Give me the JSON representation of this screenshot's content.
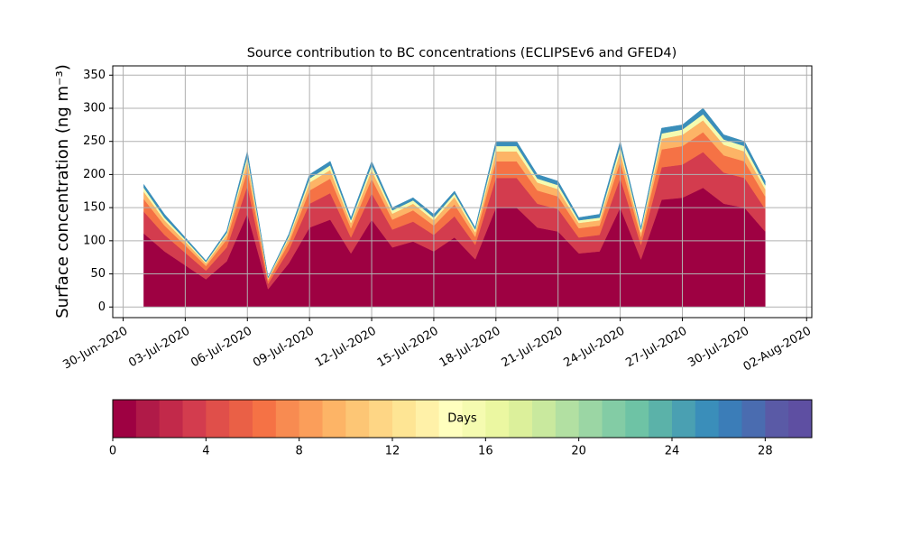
{
  "chart_data": {
    "type": "stackedarea",
    "title": "Source contribution to BC concentrations (ECLIPSEv6 and GFED4)",
    "ylabel": "Surface concentration (ng m⁻³)",
    "x": [
      "2020-07-01",
      "2020-07-02",
      "2020-07-03",
      "2020-07-04",
      "2020-07-05",
      "2020-07-06",
      "2020-07-07",
      "2020-07-08",
      "2020-07-09",
      "2020-07-10",
      "2020-07-11",
      "2020-07-12",
      "2020-07-13",
      "2020-07-14",
      "2020-07-15",
      "2020-07-16",
      "2020-07-17",
      "2020-07-18",
      "2020-07-19",
      "2020-07-20",
      "2020-07-21",
      "2020-07-22",
      "2020-07-23",
      "2020-07-24",
      "2020-07-25",
      "2020-07-26",
      "2020-07-27",
      "2020-07-28",
      "2020-07-29",
      "2020-07-30",
      "2020-07-31"
    ],
    "series": [
      {
        "color": "#9e0142",
        "values": [
          111,
          84,
          63,
          42,
          69,
          141,
          27,
          66,
          120,
          132,
          81,
          132,
          90,
          99,
          84,
          105,
          72,
          150,
          150,
          120,
          114,
          81,
          84,
          150,
          72,
          162,
          165,
          180,
          156,
          150,
          114
        ]
      },
      {
        "color": "#d33c4e",
        "values": [
          33,
          25,
          19,
          13,
          21,
          42,
          8,
          20,
          36,
          40,
          24,
          40,
          27,
          30,
          25,
          32,
          22,
          45,
          45,
          36,
          34,
          24,
          25,
          45,
          22,
          49,
          50,
          54,
          47,
          45,
          34
        ]
      },
      {
        "color": "#f57245",
        "values": [
          19,
          14,
          11,
          7,
          12,
          24,
          5,
          11,
          20,
          22,
          14,
          22,
          15,
          17,
          14,
          18,
          12,
          25,
          25,
          20,
          19,
          14,
          14,
          25,
          12,
          27,
          28,
          30,
          26,
          25,
          19
        ]
      },
      {
        "color": "#fdb466",
        "values": [
          11,
          8,
          6,
          4,
          7,
          14,
          3,
          7,
          12,
          13,
          8,
          13,
          9,
          10,
          8,
          11,
          7,
          15,
          15,
          12,
          11,
          8,
          8,
          15,
          7,
          16,
          17,
          18,
          16,
          15,
          11
        ]
      },
      {
        "color": "#f5fbb0",
        "values": [
          6,
          4,
          3,
          2,
          3,
          7,
          1,
          3,
          6,
          7,
          4,
          7,
          5,
          5,
          4,
          5,
          4,
          8,
          8,
          6,
          6,
          4,
          4,
          8,
          4,
          8,
          8,
          9,
          8,
          8,
          6
        ]
      },
      {
        "color": "#3a8eba",
        "values": [
          5,
          5,
          3,
          2,
          3,
          7,
          1,
          3,
          6,
          6,
          4,
          6,
          4,
          4,
          5,
          4,
          3,
          7,
          7,
          6,
          6,
          4,
          5,
          7,
          3,
          8,
          7,
          9,
          7,
          7,
          6
        ]
      }
    ],
    "xlim": [
      "2020-06-29T12:00",
      "2020-08-02T06:00"
    ],
    "xticks": [
      {
        "value": "2020-06-30",
        "label": "30-Jun-2020"
      },
      {
        "value": "2020-07-03",
        "label": "03-Jul-2020"
      },
      {
        "value": "2020-07-06",
        "label": "06-Jul-2020"
      },
      {
        "value": "2020-07-09",
        "label": "09-Jul-2020"
      },
      {
        "value": "2020-07-12",
        "label": "12-Jul-2020"
      },
      {
        "value": "2020-07-15",
        "label": "15-Jul-2020"
      },
      {
        "value": "2020-07-18",
        "label": "18-Jul-2020"
      },
      {
        "value": "2020-07-21",
        "label": "21-Jul-2020"
      },
      {
        "value": "2020-07-24",
        "label": "24-Jul-2020"
      },
      {
        "value": "2020-07-27",
        "label": "27-Jul-2020"
      },
      {
        "value": "2020-07-30",
        "label": "30-Jul-2020"
      },
      {
        "value": "2020-08-02",
        "label": "02-Aug-2020"
      }
    ],
    "ylim": [
      -16,
      364
    ],
    "yticks": [
      0,
      50,
      100,
      150,
      200,
      250,
      300,
      350
    ],
    "grid": true,
    "colorbar": {
      "label": "Days",
      "lim": [
        0,
        30
      ],
      "ticks": [
        0,
        4,
        8,
        12,
        16,
        20,
        24,
        28
      ],
      "colors": [
        "#9e0142",
        "#b01a48",
        "#c2294a",
        "#d33c4e",
        "#e04f4a",
        "#ea6046",
        "#f57245",
        "#f88b51",
        "#fb9e5a",
        "#fdb466",
        "#fdc675",
        "#fed685",
        "#fee594",
        "#fff1a8",
        "#ffffbe",
        "#f5fbb0",
        "#ebf7a1",
        "#dcf09b",
        "#c9e99e",
        "#b2e0a2",
        "#9bd6a4",
        "#83cca5",
        "#6ec3a5",
        "#5bb2a9",
        "#4aa0b2",
        "#3a8eba",
        "#3b7db8",
        "#4a6cb0",
        "#5a5aa6",
        "#5e4fa2"
      ]
    }
  }
}
